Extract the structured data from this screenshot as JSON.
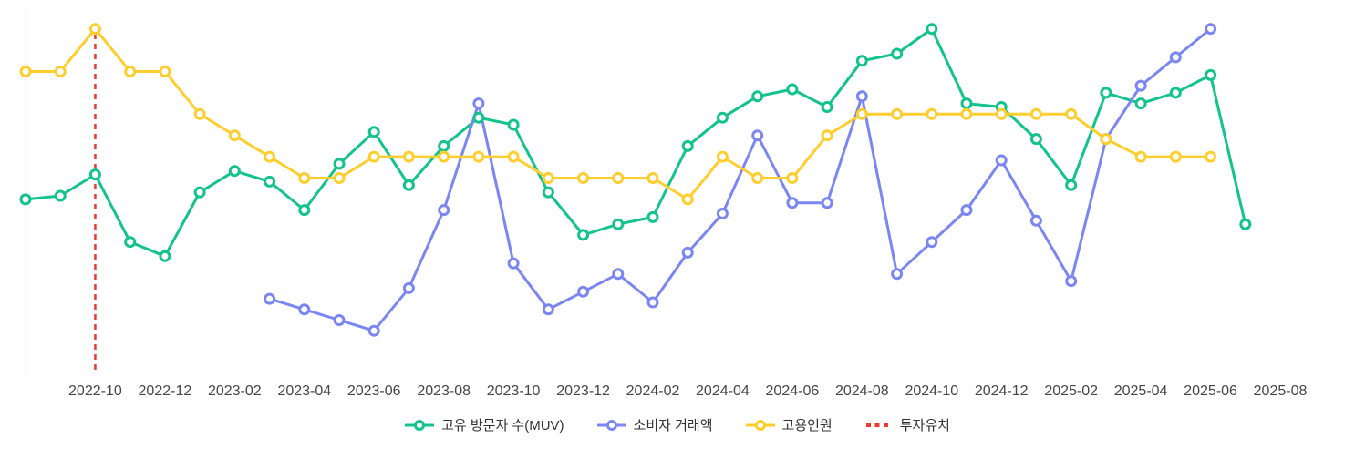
{
  "chart_data": {
    "type": "line",
    "title": "",
    "xlabel": "",
    "ylabel": "",
    "ylim": [
      0,
      100
    ],
    "grid": false,
    "legend_position": "bottom",
    "x": [
      "2022-08",
      "2022-09",
      "2022-10",
      "2022-11",
      "2022-12",
      "2023-01",
      "2023-02",
      "2023-03",
      "2023-04",
      "2023-05",
      "2023-06",
      "2023-07",
      "2023-08",
      "2023-09",
      "2023-10",
      "2023-11",
      "2023-12",
      "2024-01",
      "2024-02",
      "2024-03",
      "2024-04",
      "2024-05",
      "2024-06",
      "2024-07",
      "2024-08",
      "2024-09",
      "2024-10",
      "2024-11",
      "2024-12",
      "2025-01",
      "2025-02",
      "2025-03",
      "2025-04",
      "2025-05",
      "2025-06",
      "2025-07",
      "2025-08"
    ],
    "x_tick_labels": [
      "2022-10",
      "2022-12",
      "2023-02",
      "2023-04",
      "2023-06",
      "2023-08",
      "2023-10",
      "2023-12",
      "2024-02",
      "2024-04",
      "2024-06",
      "2024-08",
      "2024-10",
      "2024-12",
      "2025-02",
      "2025-04",
      "2025-06",
      "2025-08"
    ],
    "series": [
      {
        "name": "고유 방문자 수(MUV)",
        "color": "#12C48B",
        "values": [
          49,
          50,
          56,
          37,
          33,
          51,
          57,
          54,
          46,
          59,
          68,
          53,
          64,
          72,
          70,
          51,
          39,
          42,
          44,
          64,
          72,
          78,
          80,
          75,
          88,
          90,
          97,
          76,
          75,
          66,
          53,
          79,
          76,
          79,
          84,
          42,
          null
        ]
      },
      {
        "name": "소비자 거래액",
        "color": "#7B86F5",
        "values": [
          null,
          null,
          null,
          null,
          null,
          null,
          null,
          21,
          18,
          15,
          12,
          24,
          46,
          76,
          31,
          18,
          23,
          28,
          20,
          34,
          45,
          67,
          48,
          48,
          78,
          28,
          37,
          46,
          60,
          43,
          26,
          66,
          81,
          89,
          97,
          null,
          null
        ]
      },
      {
        "name": "고용인원",
        "color": "#FFCE2E",
        "values": [
          85,
          85,
          97,
          85,
          85,
          73,
          67,
          61,
          55,
          55,
          61,
          61,
          61,
          61,
          61,
          55,
          55,
          55,
          55,
          49,
          61,
          55,
          55,
          67,
          73,
          73,
          73,
          73,
          73,
          73,
          73,
          66,
          61,
          61,
          61,
          null,
          null
        ]
      }
    ],
    "annotations": [
      {
        "name": "투자유치",
        "type": "vertical-dashed-line",
        "x": "2022-10",
        "color": "#EA3B30"
      }
    ],
    "axis": {
      "tick_color": "#454545",
      "axis_line_color": "#ededed"
    }
  }
}
